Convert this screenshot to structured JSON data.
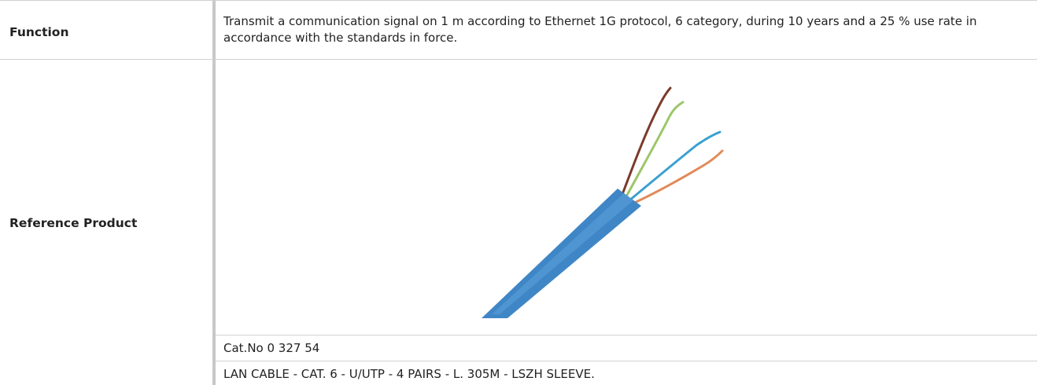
{
  "table": {
    "rows": [
      {
        "label": "Function",
        "cells": [
          "Transmit a communication signal on 1 m according to Ethernet 1G protocol, 6 category, during 10 years and a 25 % use rate in accordance with the standards in force."
        ]
      },
      {
        "label": "Reference Product",
        "cells": [
          "Cat.No 0 327 54",
          "LAN CABLE - CAT. 6 - U/UTP - 4 PAIRS - L. 305M - LSZH SLEEVE."
        ]
      }
    ]
  }
}
